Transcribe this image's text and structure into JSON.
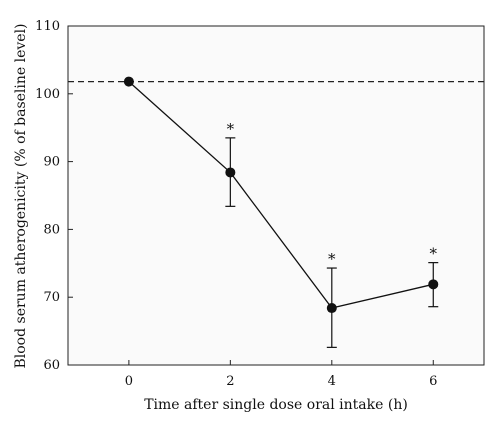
{
  "chart_data": {
    "type": "line",
    "title": "",
    "xlabel": "Time after single dose oral intake (h)",
    "ylabel": "Blood serum atherogenicity (% of baseline level)",
    "xlim": [
      -1.2,
      7
    ],
    "ylim": [
      60,
      110
    ],
    "x_ticks": [
      0,
      2,
      4,
      6
    ],
    "y_ticks": [
      60,
      70,
      80,
      90,
      100,
      110
    ],
    "reference_line": {
      "y": 101.8,
      "style": "dashed"
    },
    "series": [
      {
        "x": [
          0,
          2,
          4,
          6
        ],
        "y": [
          101.8,
          88.4,
          68.4,
          71.9
        ],
        "error_lower": [
          null,
          83.4,
          62.6,
          68.6
        ],
        "error_upper": [
          null,
          93.5,
          74.3,
          75.1
        ]
      }
    ],
    "annotations": [
      {
        "x": 2,
        "text": "*"
      },
      {
        "x": 4,
        "text": "*"
      },
      {
        "x": 6,
        "text": "*"
      }
    ]
  }
}
